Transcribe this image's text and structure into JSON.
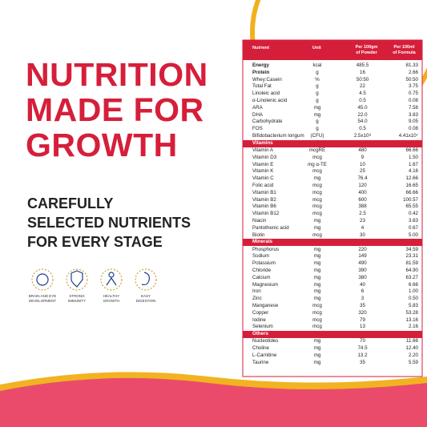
{
  "headline": [
    "NUTRITION",
    "MADE FOR",
    "GROWTH"
  ],
  "subheadline": [
    "CAREFULLY",
    "SELECTED NUTRIENTS",
    "FOR EVERY STAGE"
  ],
  "benefits": [
    [
      "BRAIN AND EYE",
      "DEVELOPMENT"
    ],
    [
      "STRONG",
      "IMMUNITY"
    ],
    [
      "HEALTHY",
      "GROWTH"
    ],
    [
      "EASY",
      "DIGESTION"
    ]
  ],
  "table": {
    "header": [
      "Nutrient",
      "Unit",
      [
        "Per 100gm",
        "of Powder"
      ],
      [
        "Per 100ml",
        "of Formula"
      ]
    ],
    "sections": [
      {
        "rows": [
          [
            "Energy",
            "kcal",
            "485.5",
            "81.33"
          ],
          [
            "Protein",
            "g",
            "16",
            "2.66"
          ],
          [
            "Whey:Casein",
            "%",
            "50:50",
            "50:50"
          ],
          [
            "Total Fat",
            "g",
            "22",
            "3.75"
          ],
          [
            "Linoleic acid",
            "g",
            "4.5",
            "0.75"
          ],
          [
            "α-Linolenic acid",
            "g",
            "0.5",
            "0.08"
          ],
          [
            "ARA",
            "mg",
            "45.0",
            "7.58"
          ],
          [
            "DHA",
            "mg",
            "22.0",
            "3.83"
          ],
          [
            "Carbohydrate",
            "g",
            "54.0",
            "9.05"
          ],
          [
            "FOS",
            "g",
            "0.5",
            "0.08"
          ],
          [
            "Bifidobacterium longum",
            "(CFU)",
            "2.5x10⁸",
            "4.41x10⁷"
          ]
        ]
      },
      {
        "title": "Vitamins",
        "rows": [
          [
            "Vitamin A",
            "mcgRE",
            "480",
            "66.66"
          ],
          [
            "Vitamin D3",
            "mcg",
            "9",
            "1.50"
          ],
          [
            "Vitamin E",
            "mg α-TE",
            "10",
            "1.67"
          ],
          [
            "Vitamin K",
            "mcg",
            "25",
            "4.16"
          ],
          [
            "Vitamin C",
            "mg",
            "76.4",
            "12.66"
          ],
          [
            "Folic acid",
            "mcg",
            "120",
            "16.65"
          ],
          [
            "Vitamin B1",
            "mcg",
            "400",
            "66.66"
          ],
          [
            "Vitamin B2",
            "mcg",
            "600",
            "100.57"
          ],
          [
            "Vitamin B6",
            "mcg",
            "388",
            "65.55"
          ],
          [
            "Vitamin B12",
            "mcg",
            "2.5",
            "0.42"
          ],
          [
            "Niacin",
            "mg",
            "23",
            "3.83"
          ],
          [
            "Pantothenic acid",
            "mg",
            "4",
            "0.67"
          ],
          [
            "Biotin",
            "mcg",
            "30",
            "5.00"
          ]
        ]
      },
      {
        "title": "Minerals",
        "rows": [
          [
            "Phosphorus",
            "mg",
            "220",
            "34.59"
          ],
          [
            "Sodium",
            "mg",
            "149",
            "23.31"
          ],
          [
            "Potassium",
            "mg",
            "490",
            "81.59"
          ],
          [
            "Chloride",
            "mg",
            "390",
            "64.90"
          ],
          [
            "Calcium",
            "mg",
            "380",
            "63.27"
          ],
          [
            "Magnesium",
            "mg",
            "40",
            "6.66"
          ],
          [
            "Iron",
            "mg",
            "6",
            "1.00"
          ],
          [
            "Zinc",
            "mg",
            "3",
            "0.50"
          ],
          [
            "Manganese",
            "mcg",
            "35",
            "5.83"
          ],
          [
            "Copper",
            "mcg",
            "320",
            "53.28"
          ],
          [
            "Iodine",
            "mcg",
            "79",
            "13.16"
          ],
          [
            "Selenium",
            "mcg",
            "13",
            "2.16"
          ]
        ]
      },
      {
        "title": "Others",
        "rows": [
          [
            "Nucleotides",
            "mg",
            "70",
            "11.66"
          ],
          [
            "Choline",
            "mg",
            "74.5",
            "12.40"
          ],
          [
            "L-Carnitine",
            "mg",
            "13.2",
            "2.20"
          ],
          [
            "Taurine",
            "mg",
            "35",
            "5.59"
          ]
        ]
      }
    ]
  }
}
